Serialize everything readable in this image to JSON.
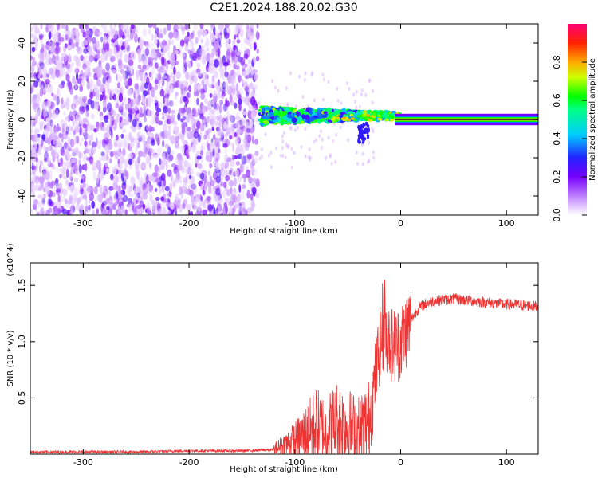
{
  "title": "C2E1.2024.188.20.02.G30",
  "chart_data": [
    {
      "type": "heatmap",
      "xlabel": "Height of straight line (km)",
      "ylabel": "Frequency (Hz)",
      "xlim": [
        -350,
        130
      ],
      "ylim": [
        -50,
        50
      ],
      "xticks": [
        -300,
        -200,
        -100,
        0,
        100
      ],
      "yticks": [
        -40,
        -20,
        0,
        20,
        40
      ],
      "colorbar": {
        "label": "Normalized spectral amplitude",
        "range": [
          0.0,
          1.0
        ],
        "ticks": [
          "0.0",
          "0.2",
          "0.4",
          "0.6",
          "0.8"
        ],
        "colors": [
          "#ffffff",
          "#8800ff",
          "#2222ff",
          "#00ffff",
          "#00ff00",
          "#ffff00",
          "#ff7700",
          "#ff0000",
          "#ff0088"
        ]
      },
      "regions": [
        {
          "x": [
            -350,
            -135
          ],
          "freq": [
            -50,
            50
          ],
          "amplitude": "scattered 0.0-0.1"
        },
        {
          "x": [
            -135,
            0
          ],
          "freq": [
            -12,
            12
          ],
          "amplitude": "0.1-0.8, band centred near 2 Hz"
        },
        {
          "x": [
            0,
            130
          ],
          "freq": [
            -3,
            3
          ],
          "amplitude": "up to 1.0, narrow line at 0 Hz"
        }
      ]
    },
    {
      "type": "line",
      "xlabel": "Height of straight line (km)",
      "ylabel": "SNR (10 * v/v)",
      "multiplier": "(x10^4)",
      "xlim": [
        -350,
        130
      ],
      "ylim": [
        0,
        1.7
      ],
      "xticks": [
        -300,
        -200,
        -100,
        0,
        100
      ],
      "yticks": [
        0.5,
        1.0,
        1.5
      ],
      "series": [
        {
          "color": "#ee3333",
          "x": [
            -350,
            -300,
            -250,
            -200,
            -150,
            -120,
            -110,
            -100,
            -90,
            -80,
            -70,
            -60,
            -50,
            -40,
            -30,
            -25,
            -20,
            -15,
            -10,
            -5,
            0,
            5,
            10,
            15,
            20,
            30,
            40,
            50,
            60,
            70,
            80,
            90,
            100,
            110,
            120,
            130
          ],
          "y": [
            0.02,
            0.02,
            0.02,
            0.03,
            0.03,
            0.04,
            0.08,
            0.12,
            0.18,
            0.25,
            0.22,
            0.28,
            0.25,
            0.22,
            0.28,
            0.6,
            0.95,
            1.1,
            1.0,
            0.95,
            1.0,
            1.1,
            1.2,
            1.27,
            1.32,
            1.36,
            1.37,
            1.38,
            1.37,
            1.36,
            1.35,
            1.34,
            1.33,
            1.33,
            1.32,
            1.31
          ]
        }
      ]
    }
  ]
}
